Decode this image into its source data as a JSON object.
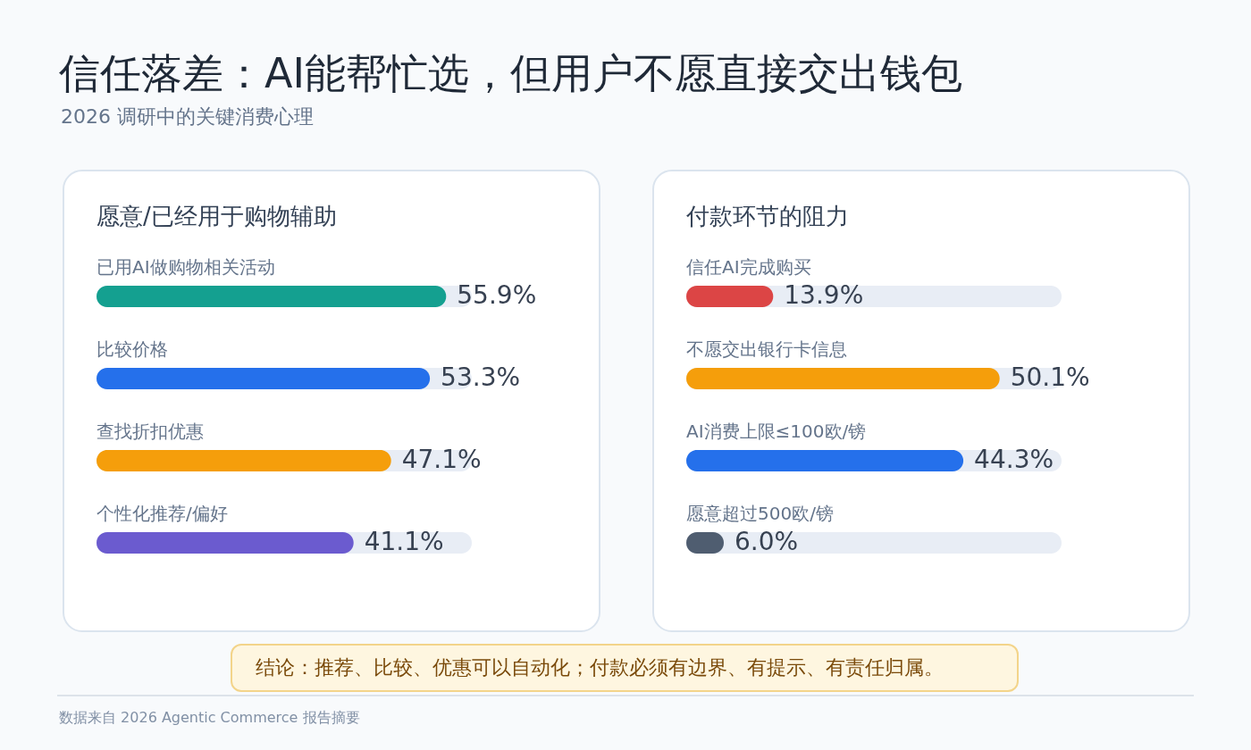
{
  "chart_data": [
    {
      "type": "other",
      "title": "信任落差：AI能帮忙选，但用户不愿直接交出钱包",
      "subtitle": "2026 调研中的关键消费心理",
      "annotations": [
        "结论：推荐、比较、优惠可以自动化；付款必须有边界、有提示、有责任归属。",
        "数据来自 2026 Agentic Commerce 报告摘要"
      ]
    },
    {
      "type": "bar",
      "orientation": "horizontal",
      "title": "愿意/已经用于购物辅助",
      "categories": [
        "已用AI做购物相关活动",
        "比较价格",
        "查找折扣优惠",
        "个性化推荐/偏好"
      ],
      "values": [
        55.9,
        53.3,
        47.1,
        41.1
      ],
      "value_labels": [
        "55.9%",
        "53.3%",
        "47.1%",
        "41.1%"
      ],
      "colors": [
        "#14a090",
        "#2570eb",
        "#f59e0b",
        "#6b5bcf"
      ],
      "xlim": [
        0,
        60
      ],
      "tick_labels": false
    },
    {
      "type": "bar",
      "orientation": "horizontal",
      "title": "付款环节的阻力",
      "categories": [
        "信任AI完成购买",
        "不愿交出银行卡信息",
        "AI消费上限≤100欧/镑",
        "愿意超过500欧/镑"
      ],
      "values": [
        13.9,
        50.1,
        44.3,
        6.0
      ],
      "value_labels": [
        "13.9%",
        "50.1%",
        "44.3%",
        "6.0%"
      ],
      "colors": [
        "#dc4545",
        "#f59e0b",
        "#2570eb",
        "#4f5d70"
      ],
      "xlim": [
        0,
        60
      ],
      "tick_labels": false
    }
  ]
}
